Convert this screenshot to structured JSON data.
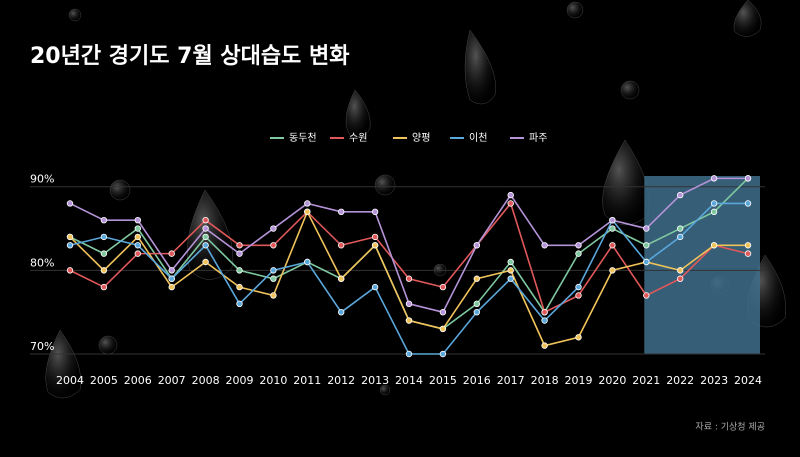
{
  "chart_data": {
    "type": "line",
    "title": "20년간 경기도 7월 상대습도 변화",
    "source": "자료 : 기상청 제공",
    "categories": [
      "2004",
      "2005",
      "2006",
      "2007",
      "2008",
      "2009",
      "2010",
      "2011",
      "2012",
      "2013",
      "2014",
      "2015",
      "2016",
      "2017",
      "2018",
      "2019",
      "2020",
      "2021",
      "2022",
      "2023",
      "2024"
    ],
    "series": [
      {
        "name": "동두천",
        "color": "#7fc8a0",
        "values": [
          84,
          82,
          85,
          79,
          84,
          80,
          79,
          81,
          79,
          83,
          74,
          73,
          76,
          81,
          75,
          82,
          85,
          83,
          85,
          87,
          91
        ]
      },
      {
        "name": "수원",
        "color": "#e0585a",
        "values": [
          80,
          78,
          82,
          82,
          86,
          83,
          83,
          87,
          83,
          84,
          79,
          78,
          83,
          88,
          75,
          77,
          83,
          77,
          79,
          83,
          82
        ]
      },
      {
        "name": "양평",
        "color": "#f0c35a",
        "values": [
          84,
          80,
          84,
          78,
          81,
          78,
          77,
          87,
          79,
          83,
          74,
          73,
          79,
          80,
          71,
          72,
          80,
          81,
          80,
          83,
          83
        ]
      },
      {
        "name": "이천",
        "color": "#5aa7dc",
        "values": [
          83,
          84,
          83,
          79,
          83,
          76,
          80,
          81,
          75,
          78,
          70,
          70,
          75,
          79,
          74,
          78,
          86,
          81,
          84,
          88,
          88
        ]
      },
      {
        "name": "파주",
        "color": "#b593d8",
        "values": [
          88,
          86,
          86,
          80,
          85,
          82,
          85,
          88,
          87,
          87,
          76,
          75,
          83,
          89,
          83,
          83,
          86,
          85,
          89,
          91,
          91
        ]
      }
    ],
    "ylim": [
      70,
      92
    ],
    "yticks": [
      {
        "value": 70,
        "label": "70%"
      },
      {
        "value": 80,
        "label": "80%"
      },
      {
        "value": 90,
        "label": "90%"
      }
    ],
    "grid": true,
    "legend": "top",
    "highlight": {
      "from": "2021",
      "to": "2024",
      "color": "#3f6e8c"
    }
  }
}
